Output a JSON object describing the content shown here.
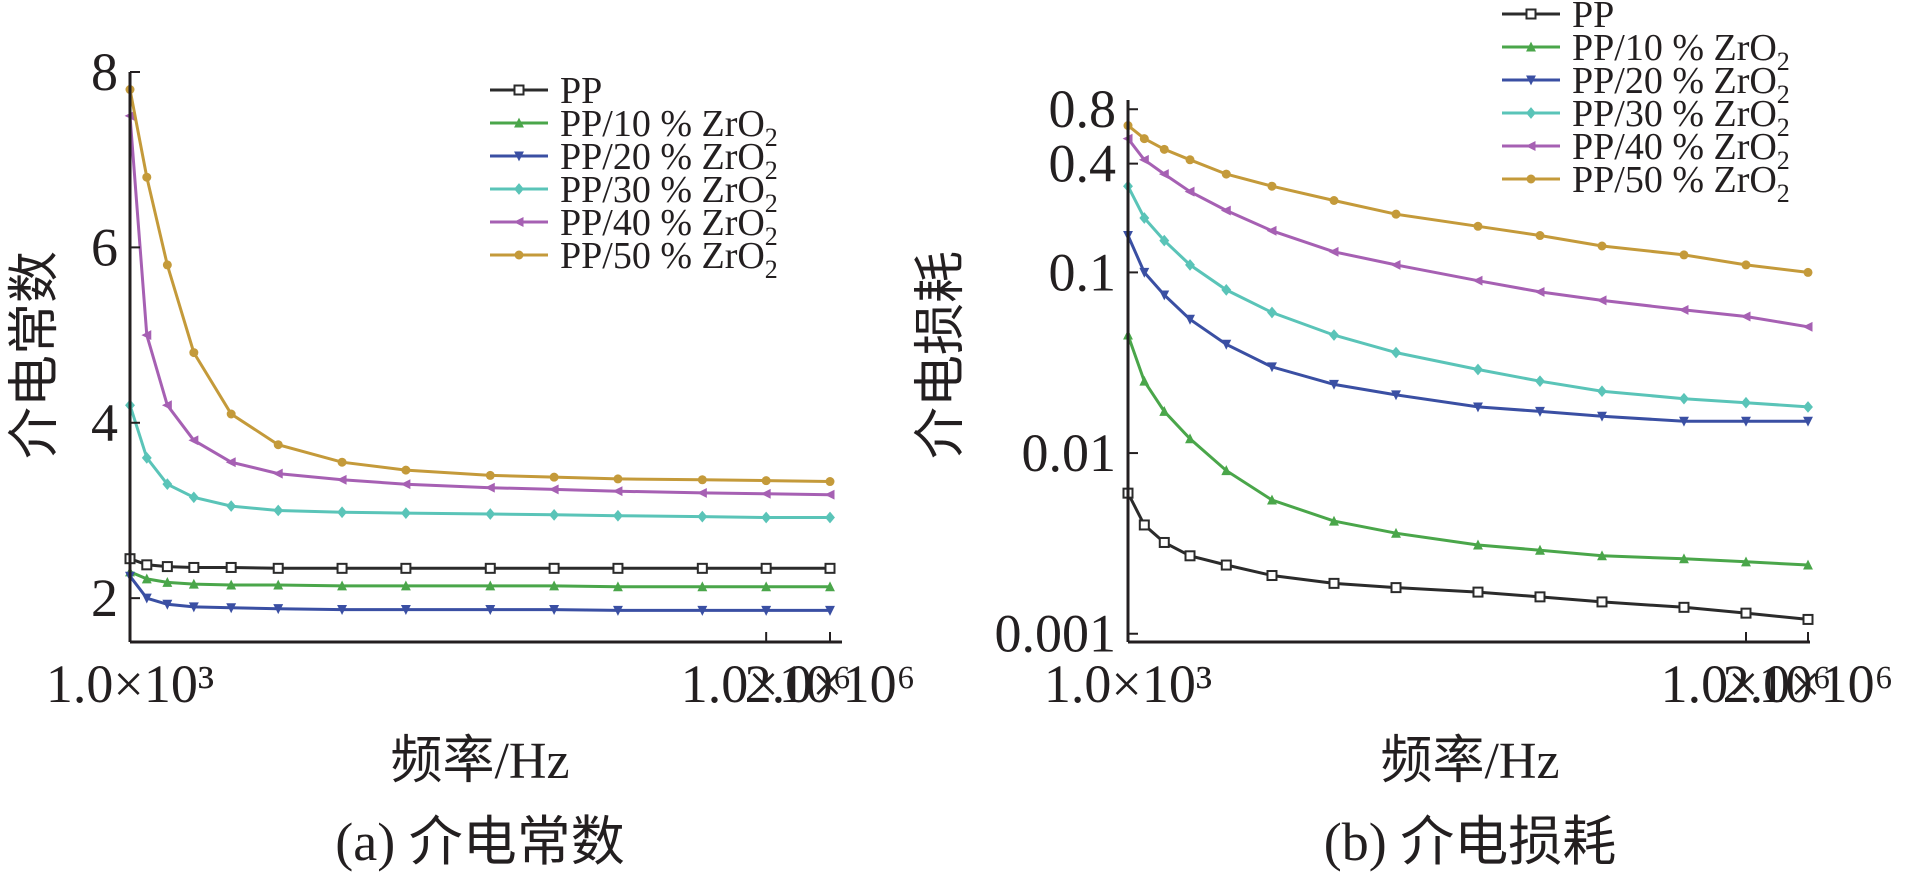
{
  "chart_data": [
    {
      "type": "line",
      "caption": "(a) 介电常数",
      "ylabel": "介电常数",
      "xlabel": "频率/Hz",
      "x_scale": "log",
      "y_scale": "linear",
      "xlim": [
        1000,
        2000000
      ],
      "ylim": [
        1.5,
        8
      ],
      "x_ticks": [
        {
          "value": 1000,
          "label": "1.0×10³"
        },
        {
          "value": 1000000,
          "label": "1.0×10⁶"
        },
        {
          "value": 2000000,
          "label": "2.0×10⁶"
        }
      ],
      "y_ticks": [
        {
          "value": 2,
          "label": "2"
        },
        {
          "value": 4,
          "label": "4"
        },
        {
          "value": 6,
          "label": "6"
        },
        {
          "value": 8,
          "label": "8"
        }
      ],
      "legend_position": "top-right",
      "x": [
        1000,
        1200,
        1500,
        2000,
        3000,
        5000,
        10000,
        20000,
        50000,
        100000,
        200000,
        500000,
        1000000,
        2000000
      ],
      "series": [
        {
          "name": "PP",
          "color": "#2b2b2b",
          "marker": "square",
          "values": [
            2.45,
            2.38,
            2.36,
            2.35,
            2.35,
            2.34,
            2.34,
            2.34,
            2.34,
            2.34,
            2.34,
            2.34,
            2.34,
            2.34
          ]
        },
        {
          "name": "PP/10 % ZrO2",
          "color": "#4aa64a",
          "marker": "triangle-up",
          "values": [
            2.3,
            2.22,
            2.18,
            2.16,
            2.15,
            2.15,
            2.14,
            2.14,
            2.14,
            2.14,
            2.13,
            2.13,
            2.13,
            2.13
          ]
        },
        {
          "name": "PP/20 % ZrO2",
          "color": "#3a4fa3",
          "marker": "triangle-down",
          "values": [
            2.25,
            2.0,
            1.93,
            1.9,
            1.89,
            1.88,
            1.87,
            1.87,
            1.87,
            1.87,
            1.86,
            1.86,
            1.86,
            1.86
          ]
        },
        {
          "name": "PP/30 % ZrO2",
          "color": "#5ac4b8",
          "marker": "diamond",
          "values": [
            4.2,
            3.6,
            3.3,
            3.15,
            3.05,
            3.0,
            2.98,
            2.97,
            2.96,
            2.95,
            2.94,
            2.93,
            2.92,
            2.92
          ]
        },
        {
          "name": "PP/40 % ZrO2",
          "color": "#a660b3",
          "marker": "triangle-left",
          "values": [
            7.5,
            5.0,
            4.2,
            3.8,
            3.55,
            3.42,
            3.35,
            3.3,
            3.26,
            3.24,
            3.22,
            3.2,
            3.19,
            3.18
          ]
        },
        {
          "name": "PP/50 % ZrO2",
          "color": "#c49a3a",
          "marker": "circle",
          "values": [
            7.8,
            6.8,
            5.8,
            4.8,
            4.1,
            3.75,
            3.55,
            3.46,
            3.4,
            3.38,
            3.36,
            3.35,
            3.34,
            3.33
          ]
        }
      ]
    },
    {
      "type": "line",
      "caption": "(b) 介电损耗",
      "ylabel": "介电损耗",
      "xlabel": "频率/Hz",
      "x_scale": "log",
      "y_scale": "log",
      "xlim": [
        1000,
        2000000
      ],
      "ylim": [
        0.0009,
        0.9
      ],
      "x_ticks": [
        {
          "value": 1000,
          "label": "1.0×10³"
        },
        {
          "value": 1000000,
          "label": "1.0×10⁶"
        },
        {
          "value": 2000000,
          "label": "2.0×10⁶"
        }
      ],
      "y_ticks": [
        {
          "value": 0.001,
          "label": "0.001"
        },
        {
          "value": 0.01,
          "label": "0.01"
        },
        {
          "value": 0.1,
          "label": "0.1"
        },
        {
          "value": 0.4,
          "label": "0.4"
        },
        {
          "value": 0.8,
          "label": "0.8"
        }
      ],
      "legend_position": "top-right",
      "x": [
        1000,
        1200,
        1500,
        2000,
        3000,
        5000,
        10000,
        20000,
        50000,
        100000,
        200000,
        500000,
        1000000,
        2000000
      ],
      "series": [
        {
          "name": "PP",
          "color": "#2b2b2b",
          "marker": "square",
          "values": [
            0.006,
            0.004,
            0.0032,
            0.0027,
            0.0024,
            0.0021,
            0.0019,
            0.0018,
            0.0017,
            0.0016,
            0.0015,
            0.0014,
            0.0013,
            0.0012
          ]
        },
        {
          "name": "PP/10 % ZrO2",
          "color": "#4aa64a",
          "marker": "triangle-up",
          "values": [
            0.045,
            0.025,
            0.017,
            0.012,
            0.008,
            0.0055,
            0.0042,
            0.0036,
            0.0031,
            0.0029,
            0.0027,
            0.0026,
            0.0025,
            0.0024
          ]
        },
        {
          "name": "PP/20 % ZrO2",
          "color": "#3a4fa3",
          "marker": "triangle-down",
          "values": [
            0.16,
            0.1,
            0.075,
            0.055,
            0.04,
            0.03,
            0.024,
            0.021,
            0.018,
            0.017,
            0.016,
            0.015,
            0.015,
            0.015
          ]
        },
        {
          "name": "PP/30 % ZrO2",
          "color": "#5ac4b8",
          "marker": "diamond",
          "values": [
            0.3,
            0.2,
            0.15,
            0.11,
            0.08,
            0.06,
            0.045,
            0.036,
            0.029,
            0.025,
            0.022,
            0.02,
            0.019,
            0.018
          ]
        },
        {
          "name": "PP/40 % ZrO2",
          "color": "#a660b3",
          "marker": "triangle-left",
          "values": [
            0.55,
            0.42,
            0.35,
            0.28,
            0.22,
            0.17,
            0.13,
            0.11,
            0.09,
            0.078,
            0.07,
            0.062,
            0.057,
            0.05
          ]
        },
        {
          "name": "PP/50 % ZrO2",
          "color": "#c49a3a",
          "marker": "circle",
          "values": [
            0.65,
            0.55,
            0.48,
            0.42,
            0.35,
            0.3,
            0.25,
            0.21,
            0.18,
            0.16,
            0.14,
            0.125,
            0.11,
            0.1
          ]
        }
      ]
    }
  ]
}
